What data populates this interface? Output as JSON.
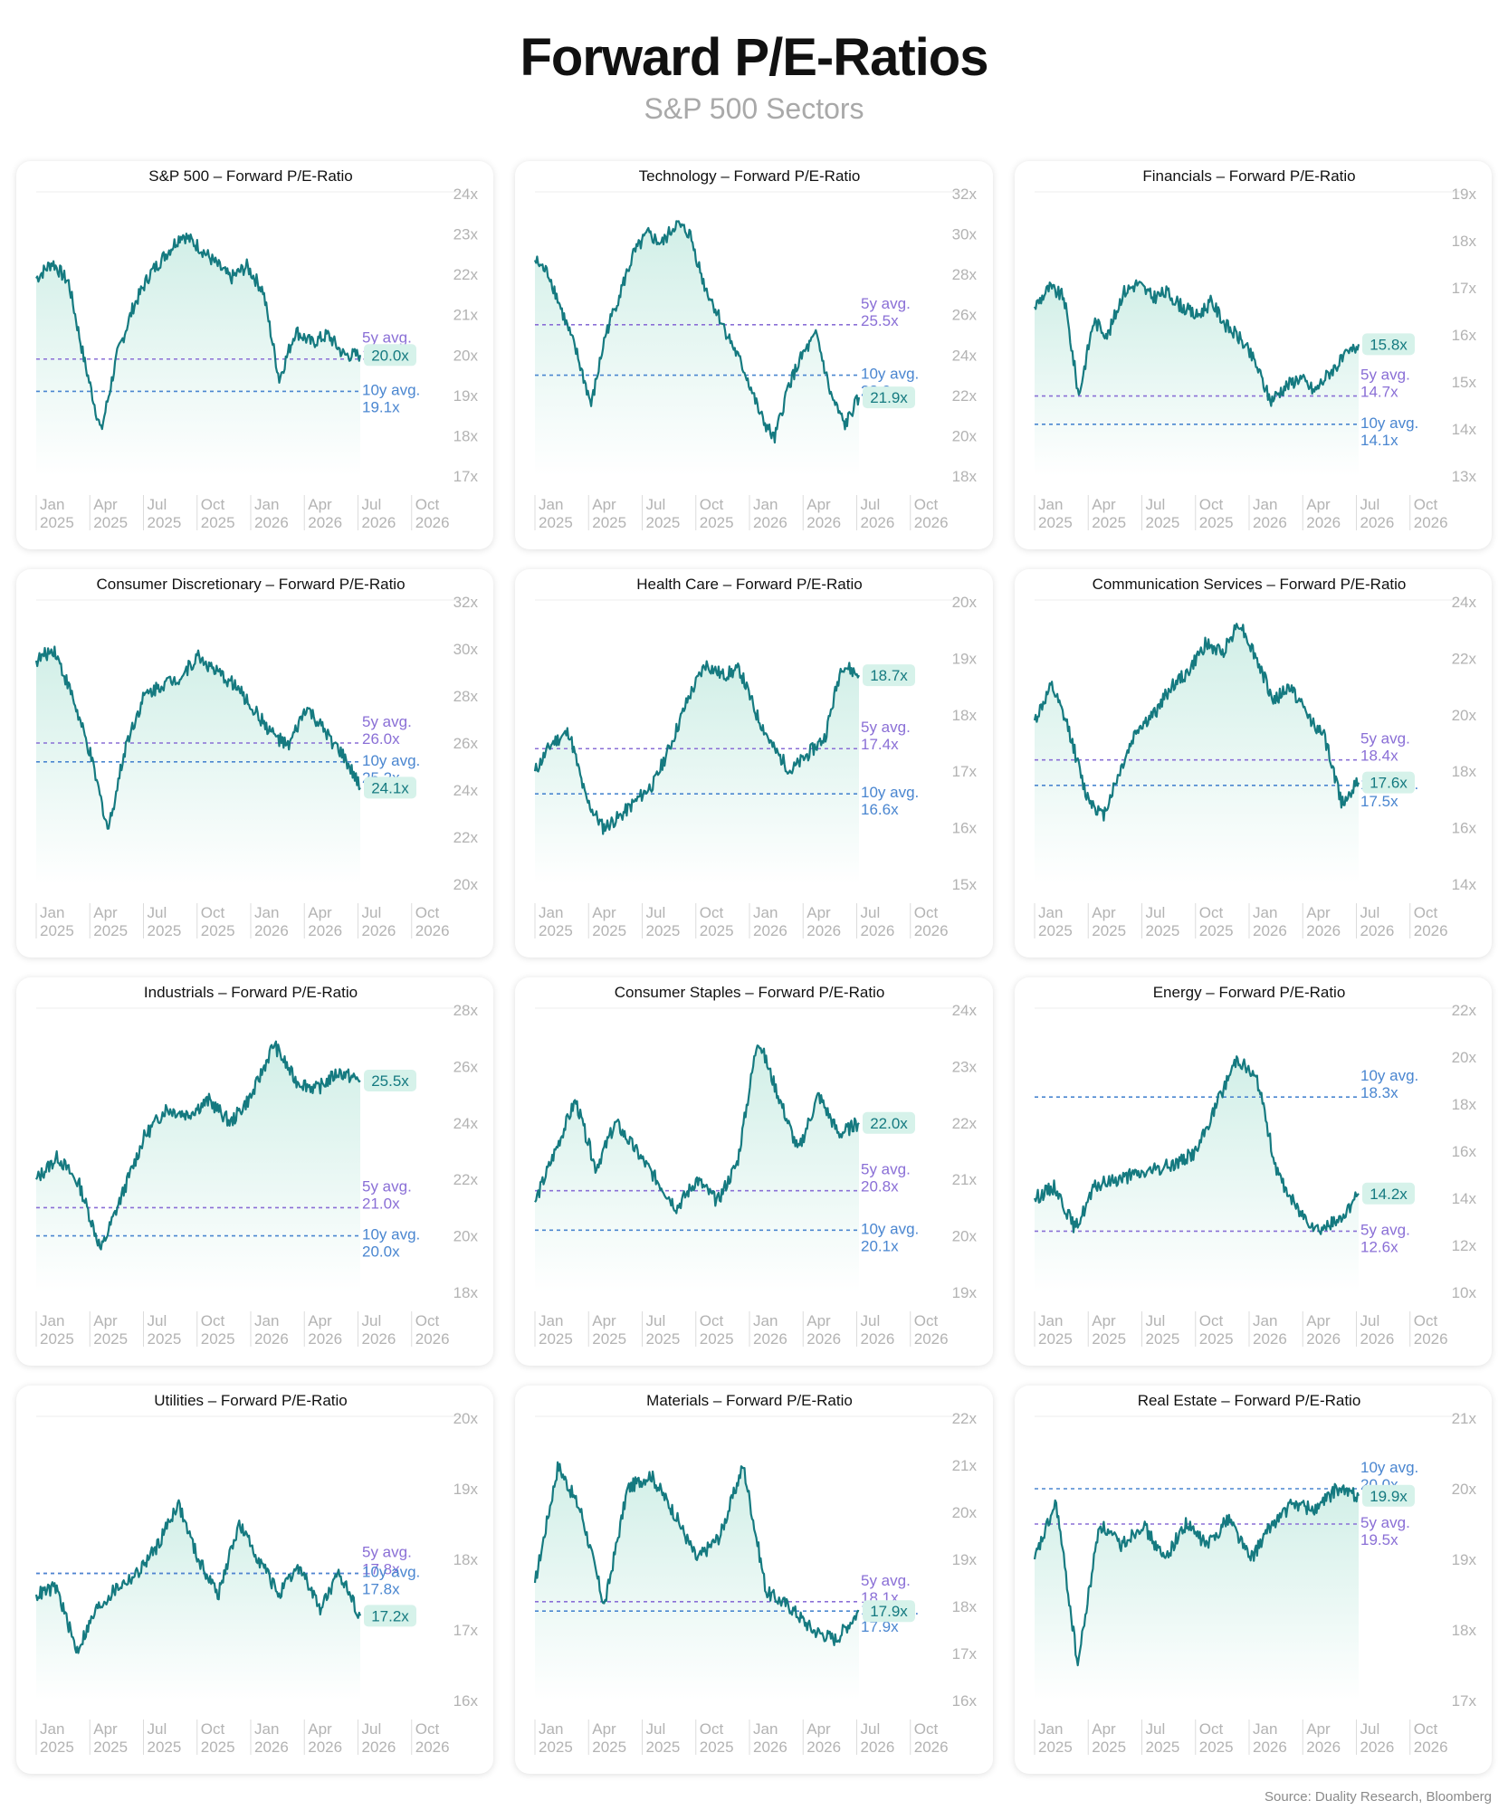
{
  "header": {
    "title": "Forward P/E-Ratios",
    "subtitle": "S&P 500 Sectors"
  },
  "footer": {
    "source": "Source: Duality Research, Bloomberg"
  },
  "colors": {
    "line": "#157a80",
    "area_top": "#c9ece3",
    "avg5": "#8a6fd6",
    "avg10": "#4a86d0",
    "axis_label": "#b3b3b3",
    "gridline": "#ededed",
    "current_badge_bg": "#d6f2ea",
    "current_badge_text": "#157a80"
  },
  "x_axis": {
    "months": [
      "Jan",
      "Apr",
      "Jul",
      "Oct",
      "Jan",
      "Apr",
      "Jul",
      "Oct"
    ],
    "years": [
      "2025",
      "2025",
      "2025",
      "2025",
      "2026",
      "2026",
      "2026",
      "2026"
    ]
  },
  "chart_data": [
    {
      "type": "line",
      "title": "S&P 500 – Forward P/E-Ratio",
      "ylim": [
        17,
        24
      ],
      "yticks": [
        "24x",
        "23x",
        "22x",
        "21x",
        "20x",
        "19x",
        "18x",
        "17x"
      ],
      "current": {
        "value": 20.0,
        "label": "20.0x"
      },
      "avg5": {
        "value": 19.9,
        "label_top": "5y avg.",
        "label_bottom": "19.9x"
      },
      "avg10": {
        "value": 19.1,
        "label_top": "10y avg.",
        "label_bottom": "19.1x"
      },
      "points": [
        21.9,
        22.3,
        21.8,
        19.8,
        18.1,
        20.0,
        21.2,
        22.0,
        22.5,
        23.0,
        22.7,
        22.3,
        21.9,
        22.2,
        21.6,
        19.4,
        20.6,
        20.3,
        20.5,
        20.0,
        20.0
      ]
    },
    {
      "type": "line",
      "title": "Technology – Forward P/E-Ratio",
      "ylim": [
        18,
        32
      ],
      "yticks": [
        "32x",
        "30x",
        "28x",
        "26x",
        "24x",
        "22x",
        "20x",
        "18x"
      ],
      "current": {
        "value": 21.9,
        "label": "21.9x"
      },
      "avg5": {
        "value": 25.5,
        "label_top": "5y avg.",
        "label_bottom": "25.5x"
      },
      "avg10": {
        "value": 23.0,
        "label_top": "10y avg.",
        "label_bottom": "23.0x"
      },
      "points": [
        28.7,
        28.0,
        26.0,
        24.0,
        21.5,
        25.0,
        27.0,
        29.0,
        30.0,
        29.5,
        30.5,
        30.0,
        27.5,
        26.0,
        24.5,
        23.0,
        21.0,
        19.8,
        22.5,
        24.0,
        25.0,
        22.0,
        20.5,
        21.9
      ]
    },
    {
      "type": "line",
      "title": "Financials – Forward P/E-Ratio",
      "ylim": [
        13,
        19
      ],
      "yticks": [
        "19x",
        "18x",
        "17x",
        "16x",
        "15x",
        "14x",
        "13x"
      ],
      "current": {
        "value": 15.8,
        "label": "15.8x"
      },
      "avg5": {
        "value": 14.7,
        "label_top": "5y avg.",
        "label_bottom": "14.7x"
      },
      "avg10": {
        "value": 14.1,
        "label_top": "10y avg.",
        "label_bottom": "14.1x"
      },
      "points": [
        16.6,
        17.0,
        16.8,
        14.7,
        16.3,
        16.0,
        16.9,
        17.1,
        16.8,
        16.9,
        16.6,
        16.4,
        16.7,
        16.2,
        15.9,
        15.4,
        14.6,
        14.9,
        15.1,
        14.8,
        15.2,
        15.5,
        15.8
      ]
    },
    {
      "type": "line",
      "title": "Consumer Discretionary – Forward P/E-Ratio",
      "ylim": [
        20,
        32
      ],
      "yticks": [
        "32x",
        "30x",
        "28x",
        "26x",
        "24x",
        "22x",
        "20x"
      ],
      "current": {
        "value": 24.1,
        "label": "24.1x"
      },
      "avg5": {
        "value": 26.0,
        "label_top": "5y avg.",
        "label_bottom": "26.0x"
      },
      "avg10": {
        "value": 25.2,
        "label_top": "10y avg.",
        "label_bottom": "25.2x"
      },
      "points": [
        29.5,
        30.0,
        28.0,
        25.5,
        22.3,
        26.0,
        28.0,
        28.5,
        28.8,
        29.7,
        29.0,
        28.5,
        27.5,
        26.5,
        25.8,
        27.5,
        26.5,
        25.5,
        24.1
      ]
    },
    {
      "type": "line",
      "title": "Health Care – Forward P/E-Ratio",
      "ylim": [
        15,
        20
      ],
      "yticks": [
        "20x",
        "19x",
        "18x",
        "17x",
        "16x",
        "15x"
      ],
      "current": {
        "value": 18.7,
        "label": "18.7x"
      },
      "avg5": {
        "value": 17.4,
        "label_top": "5y avg.",
        "label_bottom": "17.4x"
      },
      "avg10": {
        "value": 16.6,
        "label_top": "10y avg.",
        "label_bottom": "16.6x"
      },
      "points": [
        17.0,
        17.5,
        17.7,
        16.5,
        16.0,
        16.2,
        16.5,
        16.8,
        17.5,
        18.3,
        18.9,
        18.7,
        18.8,
        18.0,
        17.4,
        17.0,
        17.3,
        17.6,
        18.9,
        18.7
      ]
    },
    {
      "type": "line",
      "title": "Communication Services – Forward P/E-Ratio",
      "ylim": [
        14,
        24
      ],
      "yticks": [
        "24x",
        "22x",
        "20x",
        "18x",
        "16x",
        "14x"
      ],
      "current": {
        "value": 17.6,
        "label": "17.6x"
      },
      "avg5": {
        "value": 18.4,
        "label_top": "5y avg.",
        "label_bottom": "18.4x"
      },
      "avg10": {
        "value": 17.5,
        "label_top": "10y avg.",
        "label_bottom": "17.5x"
      },
      "points": [
        19.8,
        21.0,
        19.5,
        17.2,
        16.4,
        18.0,
        19.5,
        20.0,
        21.0,
        21.5,
        22.5,
        22.2,
        23.3,
        22.0,
        20.5,
        21.0,
        20.0,
        19.2,
        16.9,
        17.6
      ]
    },
    {
      "type": "line",
      "title": "Industrials – Forward P/E-Ratio",
      "ylim": [
        18,
        28
      ],
      "yticks": [
        "28x",
        "26x",
        "24x",
        "22x",
        "20x",
        "18x"
      ],
      "current": {
        "value": 25.5,
        "label": "25.5x"
      },
      "avg5": {
        "value": 21.0,
        "label_top": "5y avg.",
        "label_bottom": "21.0x"
      },
      "avg10": {
        "value": 20.0,
        "label_top": "10y avg.",
        "label_bottom": "20.0x"
      },
      "points": [
        22.0,
        22.8,
        21.8,
        19.5,
        21.5,
        23.5,
        24.5,
        24.3,
        24.8,
        24.0,
        25.0,
        26.8,
        25.5,
        25.2,
        25.8,
        25.5
      ]
    },
    {
      "type": "line",
      "title": "Consumer Staples – Forward P/E-Ratio",
      "ylim": [
        19,
        24
      ],
      "yticks": [
        "24x",
        "23x",
        "22x",
        "21x",
        "20x",
        "19x"
      ],
      "current": {
        "value": 22.0,
        "label": "22.0x"
      },
      "avg5": {
        "value": 20.8,
        "label_top": "5y avg.",
        "label_bottom": "20.8x"
      },
      "avg10": {
        "value": 20.1,
        "label_top": "10y avg.",
        "label_bottom": "20.1x"
      },
      "points": [
        20.6,
        21.5,
        22.4,
        21.2,
        22.0,
        21.5,
        21.0,
        20.5,
        21.0,
        20.6,
        21.3,
        23.5,
        22.5,
        21.5,
        22.5,
        21.8,
        22.0
      ]
    },
    {
      "type": "line",
      "title": "Energy – Forward P/E-Ratio",
      "ylim": [
        10,
        22
      ],
      "yticks": [
        "22x",
        "20x",
        "18x",
        "16x",
        "14x",
        "12x",
        "10x"
      ],
      "current": {
        "value": 14.2,
        "label": "14.2x"
      },
      "avg5": {
        "value": 12.6,
        "label_top": "5y avg.",
        "label_bottom": "12.6x"
      },
      "avg10": {
        "value": 18.3,
        "label_top": "10y avg.",
        "label_bottom": "18.3x"
      },
      "points": [
        14.0,
        14.5,
        12.7,
        14.5,
        14.8,
        15.0,
        15.2,
        15.5,
        16.0,
        18.0,
        20.0,
        19.0,
        15.0,
        13.5,
        12.7,
        13.0,
        14.2
      ]
    },
    {
      "type": "line",
      "title": "Utilities – Forward P/E-Ratio",
      "ylim": [
        16,
        20
      ],
      "yticks": [
        "20x",
        "19x",
        "18x",
        "17x",
        "16x"
      ],
      "current": {
        "value": 17.2,
        "label": "17.2x"
      },
      "avg5": {
        "value": 17.8,
        "label_top": "5y avg.",
        "label_bottom": "17.8x"
      },
      "avg10": {
        "value": 17.8,
        "label_top": "10y avg.",
        "label_bottom": "17.8x"
      },
      "points": [
        17.5,
        17.6,
        16.7,
        17.3,
        17.6,
        17.8,
        18.2,
        18.8,
        18.0,
        17.5,
        18.5,
        18.0,
        17.5,
        17.9,
        17.3,
        17.8,
        17.2
      ]
    },
    {
      "type": "line",
      "title": "Materials – Forward P/E-Ratio",
      "ylim": [
        16,
        22
      ],
      "yticks": [
        "22x",
        "21x",
        "20x",
        "19x",
        "18x",
        "17x",
        "16x"
      ],
      "current": {
        "value": 17.9,
        "label": "17.9x"
      },
      "avg5": {
        "value": 18.1,
        "label_top": "5y avg.",
        "label_bottom": "18.1x"
      },
      "avg10": {
        "value": 17.9,
        "label_top": "10y avg.",
        "label_bottom": "17.9x"
      },
      "points": [
        18.5,
        21.0,
        20.0,
        18.0,
        20.5,
        20.8,
        20.0,
        19.0,
        19.5,
        21.0,
        18.3,
        18.0,
        17.5,
        17.3,
        17.9
      ]
    },
    {
      "type": "line",
      "title": "Real Estate – Forward P/E-Ratio",
      "ylim": [
        17,
        21
      ],
      "yticks": [
        "21x",
        "20x",
        "19x",
        "18x",
        "17x"
      ],
      "current": {
        "value": 19.9,
        "label": "19.9x"
      },
      "avg5": {
        "value": 19.5,
        "label_top": "5y avg.",
        "label_bottom": "19.5x"
      },
      "avg10": {
        "value": 20.0,
        "label_top": "10y avg.",
        "label_bottom": "20.0x"
      },
      "points": [
        19.0,
        19.8,
        17.5,
        19.5,
        19.2,
        19.5,
        19.0,
        19.5,
        19.2,
        19.6,
        19.0,
        19.5,
        19.8,
        19.7,
        20.0,
        19.9
      ]
    }
  ]
}
